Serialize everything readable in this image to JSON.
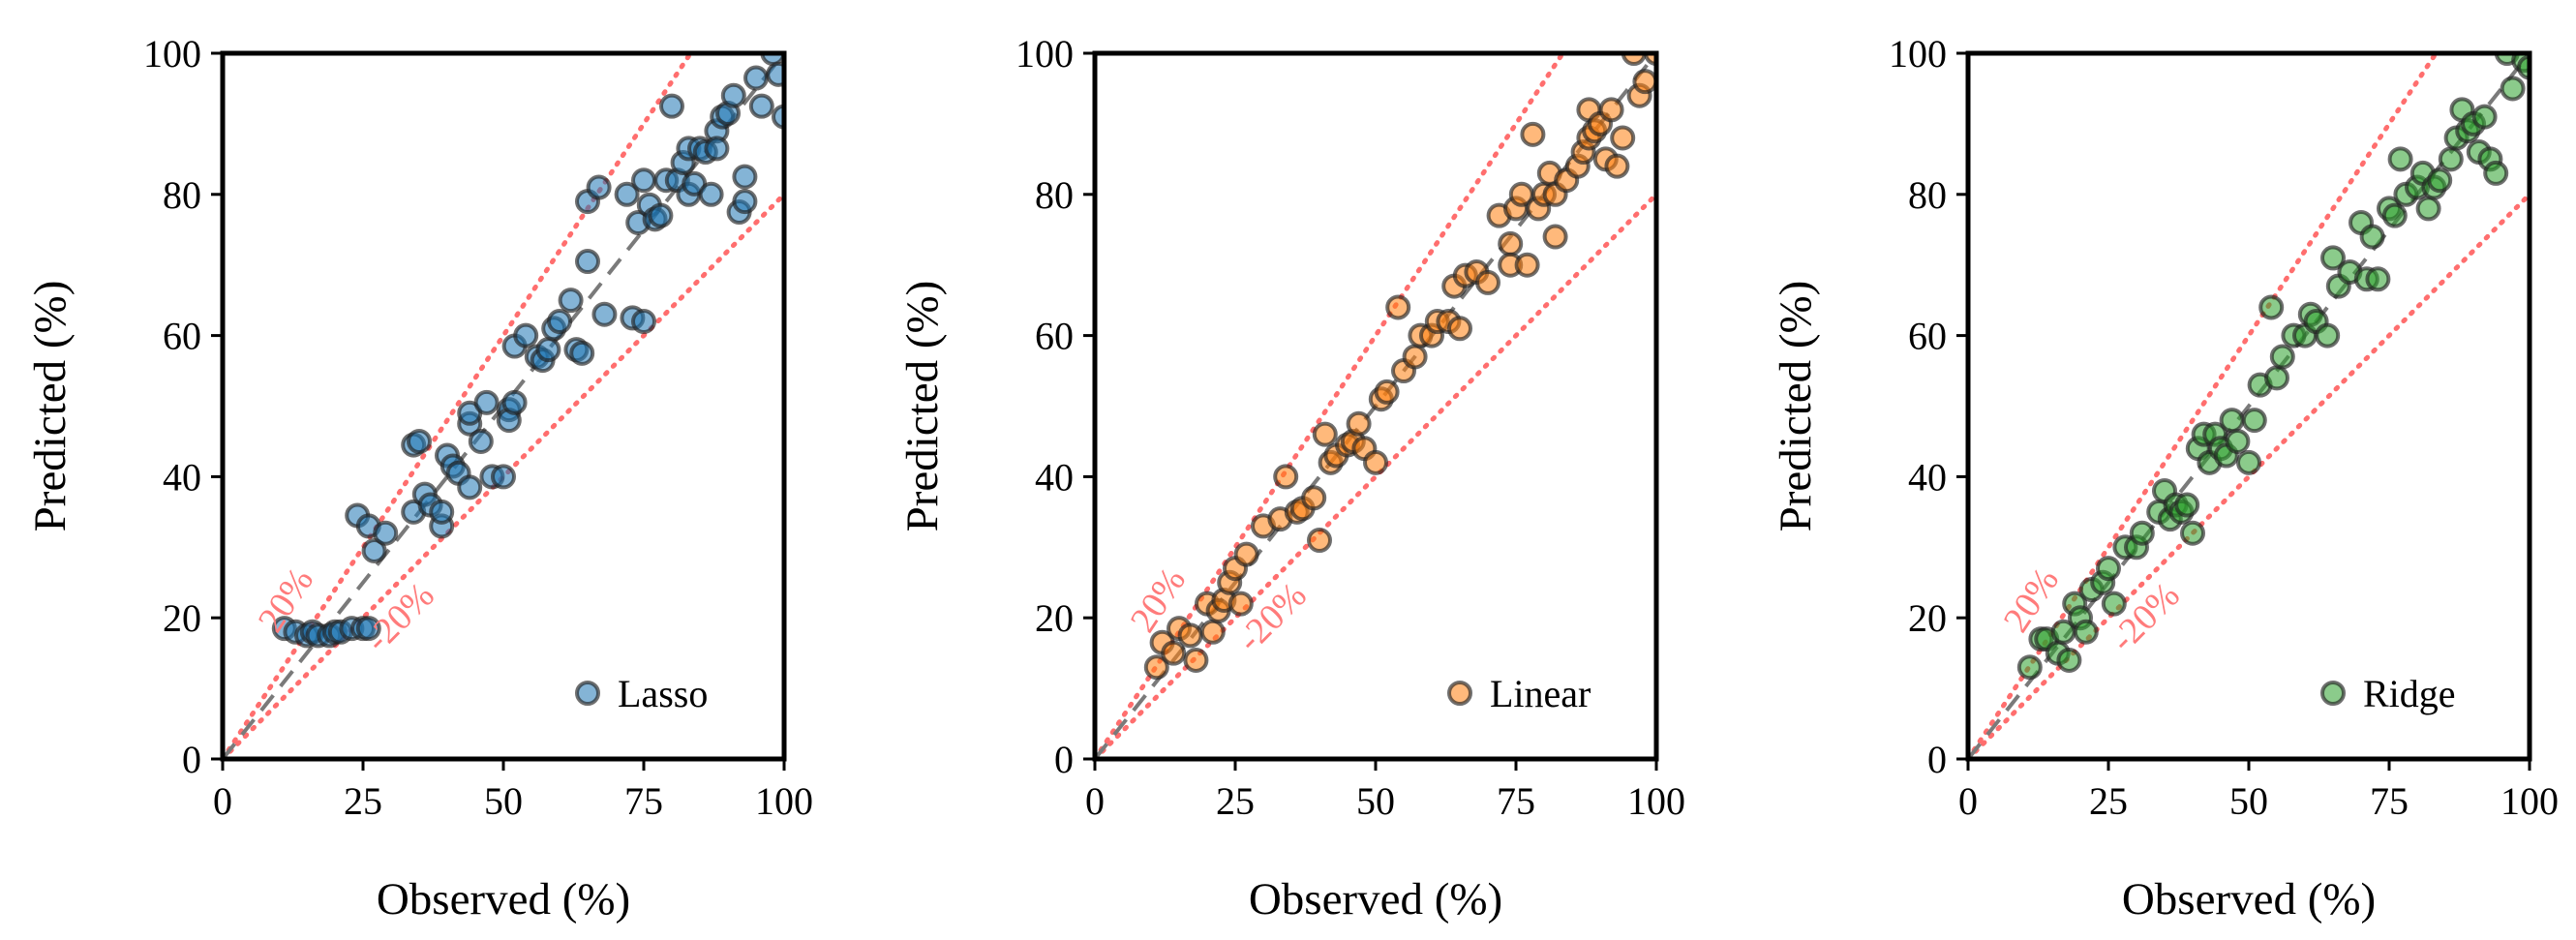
{
  "chart_data": [
    {
      "type": "scatter",
      "model": "Lasso",
      "legend_label": "Lasso",
      "legend_position": "lower-right",
      "xlabel": "Observed (%)",
      "ylabel": "Predicted (%)",
      "xlim": [
        0,
        100
      ],
      "ylim": [
        0,
        100
      ],
      "xticks": [
        "0",
        "25",
        "50",
        "75",
        "100"
      ],
      "yticks": [
        "0",
        "20",
        "40",
        "60",
        "80",
        "100"
      ],
      "grid": false,
      "band_labels": [
        "20%",
        "-20%"
      ],
      "color": "#1f77b4",
      "points": [
        [
          11,
          18.5
        ],
        [
          13,
          18
        ],
        [
          15,
          17.5
        ],
        [
          16,
          18
        ],
        [
          17,
          17.5
        ],
        [
          19,
          17.5
        ],
        [
          20,
          18
        ],
        [
          21,
          18
        ],
        [
          23,
          18.5
        ],
        [
          25,
          18.5
        ],
        [
          26,
          18.5
        ],
        [
          24,
          34.5
        ],
        [
          26,
          33
        ],
        [
          27,
          29.5
        ],
        [
          29,
          32
        ],
        [
          34,
          44.5
        ],
        [
          35,
          45
        ],
        [
          34,
          35
        ],
        [
          36,
          37.5
        ],
        [
          37,
          36
        ],
        [
          39,
          33
        ],
        [
          39,
          35
        ],
        [
          40,
          43
        ],
        [
          41,
          41.5
        ],
        [
          42,
          40.5
        ],
        [
          44,
          38.5
        ],
        [
          44,
          47.5
        ],
        [
          44,
          49
        ],
        [
          46,
          45
        ],
        [
          47,
          50.5
        ],
        [
          48,
          40
        ],
        [
          50,
          40
        ],
        [
          51,
          49.5
        ],
        [
          51,
          48
        ],
        [
          52,
          50.5
        ],
        [
          52,
          58.5
        ],
        [
          54,
          60
        ],
        [
          56,
          57
        ],
        [
          57,
          56.5
        ],
        [
          58,
          58
        ],
        [
          59,
          61
        ],
        [
          60,
          62
        ],
        [
          62,
          65
        ],
        [
          63,
          58
        ],
        [
          64,
          57.5
        ],
        [
          65,
          70.5
        ],
        [
          65,
          79
        ],
        [
          67,
          81
        ],
        [
          68,
          63
        ],
        [
          72,
          80
        ],
        [
          73,
          62.5
        ],
        [
          74,
          76
        ],
        [
          75,
          82
        ],
        [
          75,
          62
        ],
        [
          76,
          78.5
        ],
        [
          77,
          76.5
        ],
        [
          78,
          77
        ],
        [
          79,
          82
        ],
        [
          80,
          92.5
        ],
        [
          81,
          82
        ],
        [
          82,
          84.5
        ],
        [
          83,
          86.5
        ],
        [
          83,
          80
        ],
        [
          84,
          81.5
        ],
        [
          85,
          86.5
        ],
        [
          86,
          86
        ],
        [
          87,
          80
        ],
        [
          88,
          89
        ],
        [
          88,
          86.5
        ],
        [
          89,
          91
        ],
        [
          90,
          91.5
        ],
        [
          91,
          94
        ],
        [
          92,
          77.5
        ],
        [
          93,
          82.5
        ],
        [
          93,
          79
        ],
        [
          95,
          96.5
        ],
        [
          96,
          92.5
        ],
        [
          98,
          100
        ],
        [
          99,
          97
        ],
        [
          100,
          91
        ]
      ]
    },
    {
      "type": "scatter",
      "model": "Linear",
      "legend_label": "Linear",
      "legend_position": "lower-right",
      "xlabel": "Observed (%)",
      "ylabel": "Predicted (%)",
      "xlim": [
        0,
        100
      ],
      "ylim": [
        0,
        100
      ],
      "xticks": [
        "0",
        "25",
        "50",
        "75",
        "100"
      ],
      "yticks": [
        "0",
        "20",
        "40",
        "60",
        "80",
        "100"
      ],
      "grid": false,
      "band_labels": [
        "20%",
        "-20%"
      ],
      "color": "#ff7f0e",
      "points": [
        [
          11,
          13
        ],
        [
          12,
          16.5
        ],
        [
          14,
          15
        ],
        [
          15,
          18.5
        ],
        [
          17,
          17.5
        ],
        [
          18,
          14
        ],
        [
          20,
          22
        ],
        [
          21,
          18
        ],
        [
          22,
          21
        ],
        [
          23,
          22.5
        ],
        [
          24,
          25
        ],
        [
          25,
          27
        ],
        [
          26,
          22
        ],
        [
          27,
          29
        ],
        [
          30,
          33
        ],
        [
          33,
          34
        ],
        [
          34,
          40
        ],
        [
          36,
          35
        ],
        [
          37,
          35.5
        ],
        [
          39,
          37
        ],
        [
          40,
          31
        ],
        [
          41,
          46
        ],
        [
          42,
          42
        ],
        [
          43,
          43
        ],
        [
          45,
          44.5
        ],
        [
          46,
          45
        ],
        [
          47,
          47.5
        ],
        [
          48,
          44
        ],
        [
          50,
          42
        ],
        [
          51,
          51
        ],
        [
          52,
          52
        ],
        [
          54,
          64
        ],
        [
          55,
          55
        ],
        [
          57,
          57
        ],
        [
          58,
          60
        ],
        [
          60,
          60
        ],
        [
          61,
          62
        ],
        [
          63,
          62
        ],
        [
          64,
          67
        ],
        [
          65,
          61
        ],
        [
          66,
          68.5
        ],
        [
          68,
          69
        ],
        [
          70,
          67.5
        ],
        [
          72,
          77
        ],
        [
          74,
          73
        ],
        [
          74,
          70
        ],
        [
          75,
          78
        ],
        [
          76,
          80
        ],
        [
          77,
          70
        ],
        [
          78,
          88.5
        ],
        [
          79,
          78
        ],
        [
          80,
          80
        ],
        [
          81,
          83
        ],
        [
          82,
          74
        ],
        [
          82,
          80
        ],
        [
          84,
          82
        ],
        [
          86,
          84
        ],
        [
          87,
          86
        ],
        [
          88,
          92
        ],
        [
          88,
          88
        ],
        [
          89,
          89
        ],
        [
          90,
          90
        ],
        [
          91,
          85
        ],
        [
          92,
          92
        ],
        [
          93,
          84
        ],
        [
          94,
          88
        ],
        [
          96,
          100
        ],
        [
          97,
          94
        ],
        [
          98,
          96
        ],
        [
          100,
          100
        ]
      ]
    },
    {
      "type": "scatter",
      "model": "Ridge",
      "legend_label": "Ridge",
      "legend_position": "lower-right",
      "xlabel": "Observed (%)",
      "ylabel": "Predicted (%)",
      "xlim": [
        0,
        100
      ],
      "ylim": [
        0,
        100
      ],
      "xticks": [
        "0",
        "25",
        "50",
        "75",
        "100"
      ],
      "yticks": [
        "0",
        "20",
        "40",
        "60",
        "80",
        "100"
      ],
      "grid": false,
      "band_labels": [
        "20%",
        "-20%"
      ],
      "color": "#2ca02c",
      "points": [
        [
          11,
          13
        ],
        [
          13,
          17
        ],
        [
          14,
          17
        ],
        [
          16,
          15
        ],
        [
          17,
          18
        ],
        [
          18,
          14
        ],
        [
          19,
          22
        ],
        [
          20,
          20
        ],
        [
          21,
          18
        ],
        [
          22,
          24
        ],
        [
          24,
          25
        ],
        [
          25,
          27
        ],
        [
          26,
          22
        ],
        [
          28,
          30
        ],
        [
          30,
          30
        ],
        [
          31,
          32
        ],
        [
          34,
          35
        ],
        [
          35,
          38
        ],
        [
          36,
          34
        ],
        [
          37,
          36
        ],
        [
          38,
          35
        ],
        [
          39,
          36
        ],
        [
          40,
          32
        ],
        [
          41,
          44
        ],
        [
          42,
          46
        ],
        [
          43,
          42
        ],
        [
          44,
          46
        ],
        [
          45,
          44
        ],
        [
          46,
          43
        ],
        [
          47,
          48
        ],
        [
          48,
          45
        ],
        [
          50,
          42
        ],
        [
          51,
          48
        ],
        [
          52,
          53
        ],
        [
          54,
          64
        ],
        [
          55,
          54
        ],
        [
          56,
          57
        ],
        [
          58,
          60
        ],
        [
          60,
          60
        ],
        [
          61,
          63
        ],
        [
          62,
          62
        ],
        [
          64,
          60
        ],
        [
          65,
          71
        ],
        [
          66,
          67
        ],
        [
          68,
          69
        ],
        [
          70,
          76
        ],
        [
          71,
          68
        ],
        [
          72,
          74
        ],
        [
          73,
          68
        ],
        [
          75,
          78
        ],
        [
          76,
          77
        ],
        [
          77,
          85
        ],
        [
          78,
          80
        ],
        [
          80,
          81
        ],
        [
          81,
          83
        ],
        [
          82,
          78
        ],
        [
          83,
          81
        ],
        [
          84,
          82
        ],
        [
          86,
          85
        ],
        [
          87,
          88
        ],
        [
          88,
          92
        ],
        [
          89,
          89
        ],
        [
          90,
          90
        ],
        [
          91,
          86
        ],
        [
          92,
          91
        ],
        [
          93,
          85
        ],
        [
          94,
          83
        ],
        [
          96,
          100
        ],
        [
          97,
          95
        ],
        [
          99,
          99
        ],
        [
          100,
          98
        ]
      ]
    }
  ]
}
